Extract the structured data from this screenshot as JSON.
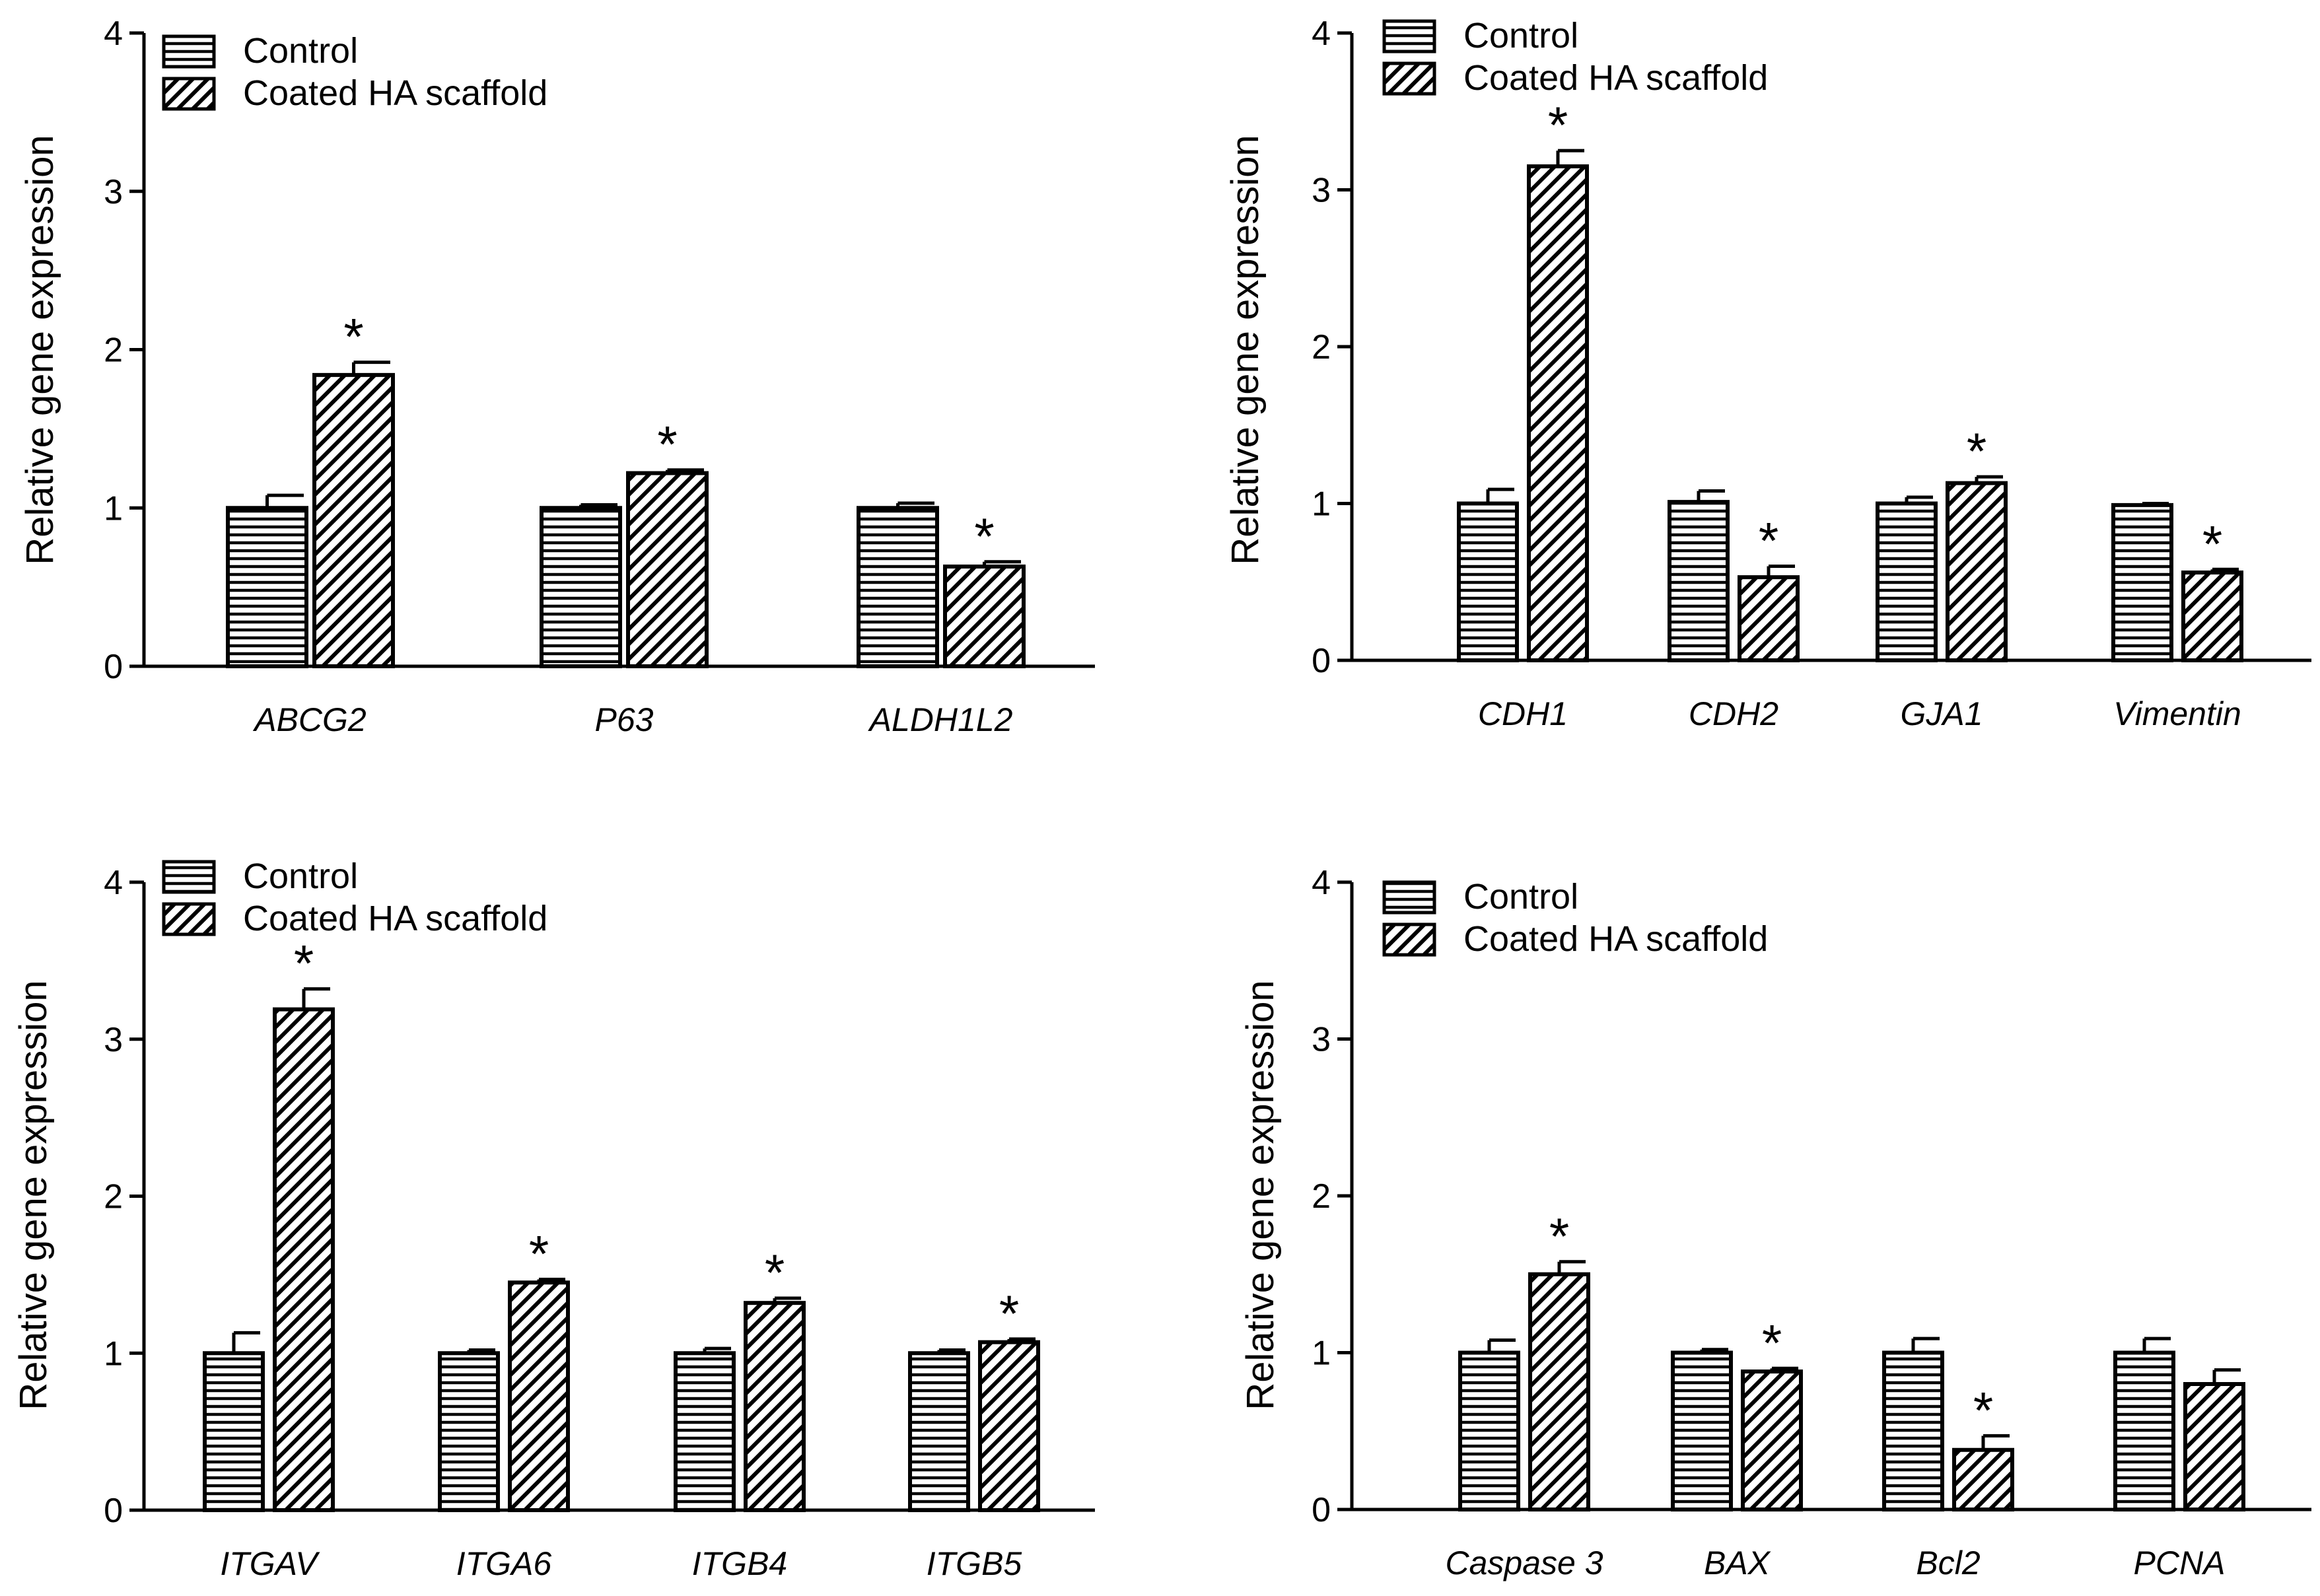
{
  "legend": {
    "control": "Control",
    "treated": "Coated HA scaffold"
  },
  "chart_data": [
    {
      "type": "bar",
      "title": "",
      "xlabel": "",
      "ylabel": "Relative gene expression",
      "ylim": [
        0,
        4
      ],
      "yticks": [
        "0",
        "1",
        "2",
        "3",
        "4"
      ],
      "categories": [
        "ABCG2",
        "P63",
        "ALDH1L2"
      ],
      "series": [
        {
          "name": "Control",
          "values": [
            1.0,
            1.0,
            1.0
          ],
          "errors": [
            0.08,
            0.02,
            0.03
          ]
        },
        {
          "name": "Coated HA scaffold",
          "values": [
            1.84,
            1.22,
            0.63
          ],
          "errors": [
            0.08,
            0.02,
            0.03
          ]
        }
      ],
      "significance": [
        "*",
        "*",
        "*"
      ],
      "legend": "top-left"
    },
    {
      "type": "bar",
      "title": "",
      "xlabel": "",
      "ylabel": "Relative gene expression",
      "ylim": [
        0,
        4
      ],
      "yticks": [
        "0",
        "1",
        "2",
        "3",
        "4"
      ],
      "categories": [
        "CDH1",
        "CDH2",
        "GJA1",
        "Vimentin"
      ],
      "series": [
        {
          "name": "Control",
          "values": [
            1.0,
            1.01,
            1.0,
            0.99
          ],
          "errors": [
            0.09,
            0.07,
            0.04,
            0.01
          ]
        },
        {
          "name": "Coated HA scaffold",
          "values": [
            3.15,
            0.53,
            1.13,
            0.56
          ],
          "errors": [
            0.1,
            0.07,
            0.04,
            0.02
          ]
        }
      ],
      "significance": [
        "*",
        "*",
        "*",
        "*"
      ],
      "legend": "top-left"
    },
    {
      "type": "bar",
      "title": "",
      "xlabel": "",
      "ylabel": "Relative gene expression",
      "ylim": [
        0,
        4
      ],
      "yticks": [
        "0",
        "1",
        "2",
        "3",
        "4"
      ],
      "categories": [
        "ITGAV",
        "ITGA6",
        "ITGB4",
        "ITGB5"
      ],
      "series": [
        {
          "name": "Control",
          "values": [
            1.0,
            1.0,
            1.0,
            1.0
          ],
          "errors": [
            0.13,
            0.02,
            0.03,
            0.02
          ]
        },
        {
          "name": "Coated HA scaffold",
          "values": [
            3.19,
            1.45,
            1.32,
            1.07
          ],
          "errors": [
            0.13,
            0.02,
            0.03,
            0.02
          ]
        }
      ],
      "significance": [
        "*",
        "*",
        "*",
        "*"
      ],
      "legend": "top-left"
    },
    {
      "type": "bar",
      "title": "",
      "xlabel": "",
      "ylabel": "Relative gene expression",
      "ylim": [
        0,
        4
      ],
      "yticks": [
        "0",
        "1",
        "2",
        "3",
        "4"
      ],
      "categories": [
        "Caspase 3",
        "BAX",
        "Bcl2",
        "PCNA"
      ],
      "series": [
        {
          "name": "Control",
          "values": [
            1.0,
            1.0,
            1.0,
            1.0
          ],
          "errors": [
            0.08,
            0.02,
            0.09,
            0.09
          ]
        },
        {
          "name": "Coated HA scaffold",
          "values": [
            1.5,
            0.88,
            0.38,
            0.8
          ],
          "errors": [
            0.08,
            0.02,
            0.09,
            0.09
          ]
        }
      ],
      "significance": [
        "*",
        "*",
        "*",
        ""
      ],
      "legend": "top-left"
    }
  ]
}
